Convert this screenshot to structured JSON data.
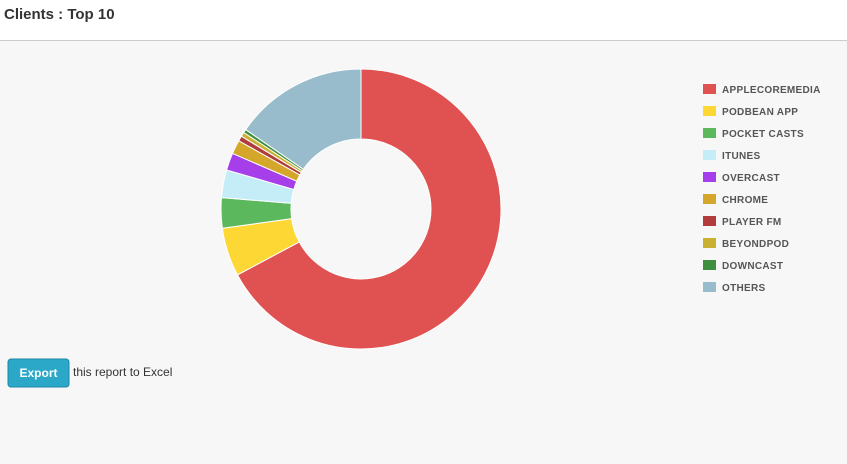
{
  "chart_data": {
    "type": "pie",
    "title": "Clients : Top 10",
    "categories": [
      "APPLECOREMEDIA",
      "PODBEAN APP",
      "POCKET CASTS",
      "ITUNES",
      "OVERCAST",
      "CHROME",
      "PLAYER FM",
      "BEYONDPOD",
      "DOWNCAST",
      "OTHERS"
    ],
    "values": [
      67.2,
      5.6,
      3.5,
      3.2,
      2.0,
      1.6,
      0.6,
      0.5,
      0.4,
      15.4
    ],
    "colors": [
      "#e05252",
      "#fdd835",
      "#5cb85c",
      "#c4edf8",
      "#a63ee9",
      "#d4a62a",
      "#b23c3c",
      "#c9b030",
      "#3f8f3f",
      "#98bccb"
    ],
    "legend": "right"
  },
  "export": {
    "button": "Export",
    "text": "this report to Excel"
  }
}
